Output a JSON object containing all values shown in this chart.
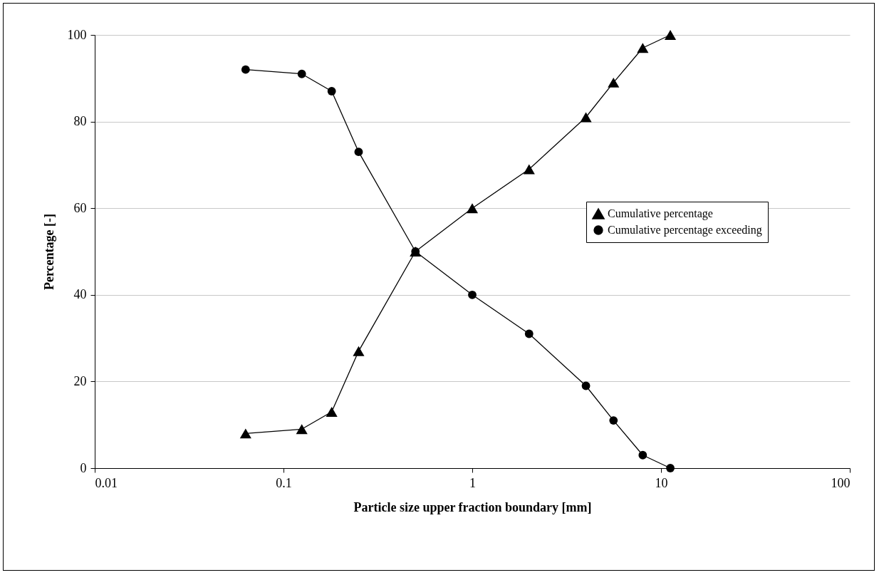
{
  "chart_data": {
    "type": "line",
    "xlabel": "Particle size upper fraction boundary [mm]",
    "ylabel": "Percentage [-]",
    "x": [
      0.063,
      0.125,
      0.18,
      0.25,
      0.5,
      1,
      2,
      4,
      5.6,
      8,
      11.2
    ],
    "series": [
      {
        "name": "Cumulative percentage",
        "color": "#000000",
        "marker": "triangle",
        "values": [
          8,
          9,
          13,
          27,
          50,
          60,
          69,
          81,
          89,
          97,
          100
        ]
      },
      {
        "name": "Cumulative percentage exceeding",
        "color": "#000000",
        "marker": "circle",
        "values": [
          92,
          91,
          87,
          73,
          50,
          40,
          31,
          19,
          11,
          3,
          0
        ]
      }
    ],
    "log": "x",
    "xlim": [
      0.01,
      100
    ],
    "xticks": [
      0.01,
      0.1,
      1,
      10,
      100
    ],
    "ylim": [
      0,
      100
    ],
    "yticks": [
      0,
      20,
      40,
      60,
      80,
      100
    ],
    "grid": "y",
    "legend": "right",
    "line_style": "solid"
  }
}
